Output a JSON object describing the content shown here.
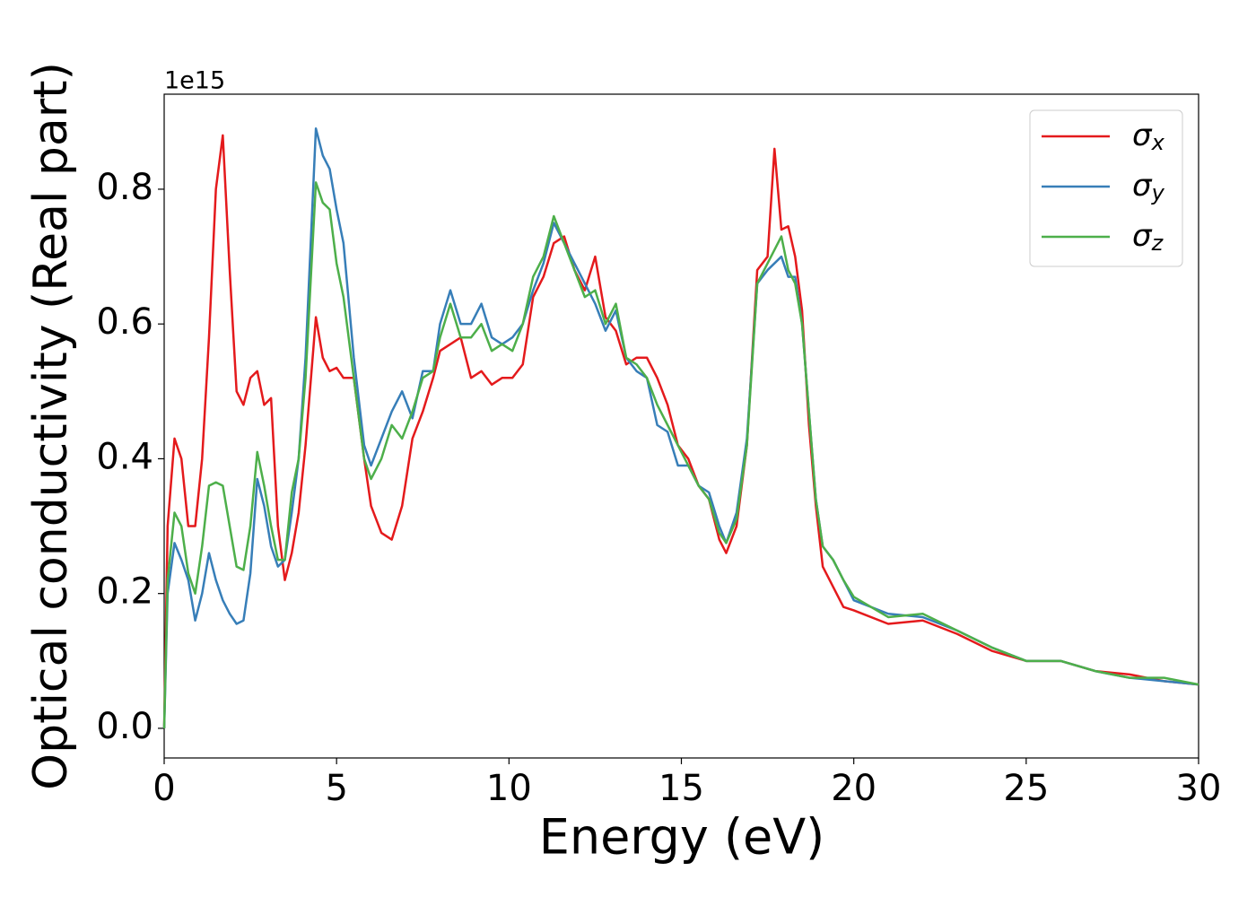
{
  "chart_data": {
    "type": "line",
    "xlabel": "Energy (eV)",
    "ylabel": "Optical conductivity (Real part)",
    "y_offset_label": "1e15",
    "legend": "upper right",
    "xlim": [
      0,
      30
    ],
    "ylim": [
      -0.044,
      0.941
    ],
    "xticks": [
      0,
      5,
      10,
      15,
      20,
      25,
      30
    ],
    "yticks": [
      {
        "value": 0,
        "label": "0.0"
      },
      {
        "value": 0.2,
        "label": "0.2"
      },
      {
        "value": 0.4,
        "label": "0.4"
      },
      {
        "value": 0.6,
        "label": "0.6"
      },
      {
        "value": 0.8,
        "label": "0.8"
      }
    ],
    "x": [
      0,
      0.1,
      0.3,
      0.5,
      0.7,
      0.9,
      1.1,
      1.3,
      1.5,
      1.7,
      1.9,
      2.1,
      2.3,
      2.5,
      2.7,
      2.9,
      3.1,
      3.3,
      3.5,
      3.7,
      3.9,
      4.1,
      4.4,
      4.6,
      4.8,
      5.0,
      5.2,
      5.5,
      5.8,
      6.0,
      6.3,
      6.6,
      6.9,
      7.2,
      7.5,
      7.8,
      8.0,
      8.3,
      8.6,
      8.9,
      9.2,
      9.5,
      9.8,
      10.1,
      10.4,
      10.7,
      11.0,
      11.3,
      11.6,
      11.9,
      12.2,
      12.5,
      12.8,
      13.1,
      13.4,
      13.7,
      14.0,
      14.3,
      14.6,
      14.9,
      15.2,
      15.5,
      15.8,
      16.1,
      16.3,
      16.6,
      16.9,
      17.2,
      17.5,
      17.7,
      17.9,
      18.1,
      18.3,
      18.5,
      18.7,
      18.9,
      19.1,
      19.4,
      19.7,
      20,
      21,
      22,
      23,
      24,
      25,
      26,
      27,
      28,
      29,
      30
    ],
    "series": [
      {
        "name": "σx",
        "color": "#e41a1c",
        "values": [
          0.0,
          0.3,
          0.43,
          0.4,
          0.3,
          0.3,
          0.4,
          0.58,
          0.8,
          0.88,
          0.68,
          0.5,
          0.48,
          0.52,
          0.53,
          0.48,
          0.49,
          0.3,
          0.22,
          0.26,
          0.32,
          0.42,
          0.61,
          0.55,
          0.53,
          0.535,
          0.52,
          0.52,
          0.4,
          0.33,
          0.29,
          0.28,
          0.33,
          0.43,
          0.47,
          0.52,
          0.56,
          0.57,
          0.58,
          0.52,
          0.53,
          0.51,
          0.52,
          0.52,
          0.54,
          0.64,
          0.67,
          0.72,
          0.73,
          0.68,
          0.65,
          0.7,
          0.61,
          0.59,
          0.54,
          0.55,
          0.55,
          0.52,
          0.48,
          0.42,
          0.4,
          0.36,
          0.34,
          0.28,
          0.26,
          0.3,
          0.42,
          0.68,
          0.7,
          0.86,
          0.74,
          0.745,
          0.7,
          0.62,
          0.45,
          0.33,
          0.24,
          0.21,
          0.18,
          0.175,
          0.155,
          0.16,
          0.14,
          0.115,
          0.1,
          0.1,
          0.085,
          0.08,
          0.07,
          0.065
        ]
      },
      {
        "name": "σy",
        "color": "#377eb8",
        "values": [
          0.0,
          0.2,
          0.275,
          0.25,
          0.22,
          0.16,
          0.2,
          0.26,
          0.22,
          0.19,
          0.17,
          0.155,
          0.16,
          0.23,
          0.37,
          0.33,
          0.27,
          0.24,
          0.25,
          0.32,
          0.4,
          0.55,
          0.89,
          0.85,
          0.83,
          0.77,
          0.72,
          0.55,
          0.42,
          0.39,
          0.43,
          0.47,
          0.5,
          0.46,
          0.53,
          0.53,
          0.6,
          0.65,
          0.6,
          0.6,
          0.63,
          0.58,
          0.57,
          0.58,
          0.6,
          0.65,
          0.69,
          0.75,
          0.72,
          0.69,
          0.66,
          0.63,
          0.59,
          0.62,
          0.55,
          0.53,
          0.52,
          0.45,
          0.44,
          0.39,
          0.39,
          0.36,
          0.35,
          0.3,
          0.275,
          0.32,
          0.43,
          0.66,
          0.68,
          0.69,
          0.7,
          0.67,
          0.67,
          0.6,
          0.47,
          0.34,
          0.27,
          0.25,
          0.22,
          0.19,
          0.17,
          0.165,
          0.145,
          0.12,
          0.1,
          0.1,
          0.085,
          0.075,
          0.07,
          0.065
        ]
      },
      {
        "name": "σz",
        "color": "#4daf4a",
        "values": [
          0.0,
          0.22,
          0.32,
          0.3,
          0.23,
          0.2,
          0.27,
          0.36,
          0.365,
          0.36,
          0.3,
          0.24,
          0.235,
          0.3,
          0.41,
          0.36,
          0.3,
          0.25,
          0.25,
          0.35,
          0.4,
          0.52,
          0.81,
          0.78,
          0.77,
          0.69,
          0.64,
          0.52,
          0.4,
          0.37,
          0.4,
          0.45,
          0.43,
          0.47,
          0.52,
          0.53,
          0.58,
          0.63,
          0.58,
          0.58,
          0.6,
          0.56,
          0.57,
          0.56,
          0.6,
          0.67,
          0.7,
          0.76,
          0.72,
          0.68,
          0.64,
          0.65,
          0.6,
          0.63,
          0.55,
          0.54,
          0.52,
          0.48,
          0.45,
          0.42,
          0.39,
          0.36,
          0.34,
          0.29,
          0.275,
          0.31,
          0.42,
          0.66,
          0.69,
          0.71,
          0.73,
          0.68,
          0.66,
          0.6,
          0.47,
          0.34,
          0.27,
          0.25,
          0.22,
          0.195,
          0.165,
          0.17,
          0.145,
          0.12,
          0.1,
          0.1,
          0.085,
          0.075,
          0.075,
          0.065
        ]
      }
    ]
  }
}
